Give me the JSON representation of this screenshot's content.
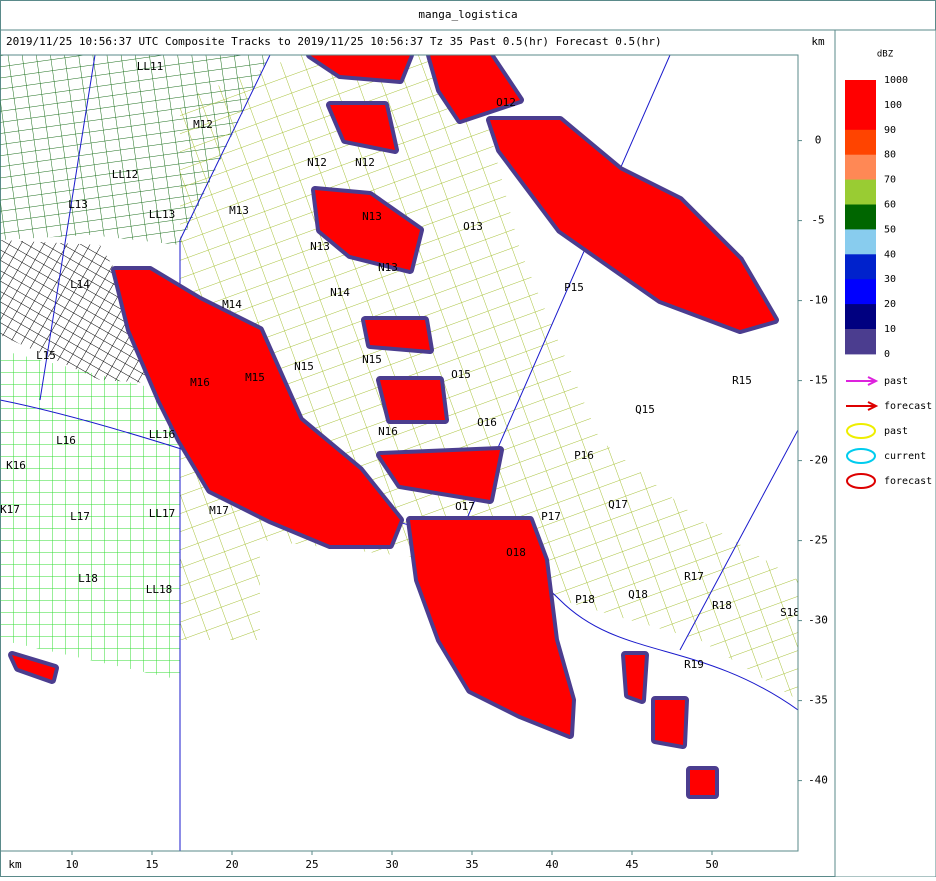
{
  "window_title": "manga_logistica",
  "header": "2019/11/25 10:56:37 UTC Composite Tracks to 2019/11/25 10:56:37 Tz 35 Past 0.5(hr) Forecast 0.5(hr)",
  "axes": {
    "x_unit": "km",
    "y_unit": "km",
    "xlim": [
      5.5,
      55.375
    ],
    "ylim": [
      -44.4,
      5.35
    ],
    "xticks": [
      10,
      15,
      20,
      25,
      30,
      35,
      40,
      45,
      50
    ],
    "yticks": [
      0,
      -5,
      -10,
      -15,
      -20,
      -25,
      -30,
      -35,
      -40
    ]
  },
  "legend": {
    "title": "dBZ",
    "scale_labels": [
      1000,
      100,
      90,
      80,
      70,
      60,
      50,
      40,
      30,
      20,
      10,
      0
    ],
    "scale_colors": [
      "#ff0000",
      "#ff0000",
      "#ff4400",
      "#ff8855",
      "#99cc33",
      "#006600",
      "#88ccee",
      "#0022cc",
      "#0000ff",
      "#000080",
      "#4b3d8f"
    ],
    "items": [
      {
        "symbol": "arrow",
        "color": "#dd22dd",
        "label": "past"
      },
      {
        "symbol": "arrow",
        "color": "#dd0000",
        "label": "forecast"
      },
      {
        "symbol": "ellipse",
        "color": "#eeee00",
        "label": "past"
      },
      {
        "symbol": "ellipse",
        "color": "#00ccee",
        "label": "current"
      },
      {
        "symbol": "ellipse",
        "color": "#dd0000",
        "label": "forecast"
      }
    ]
  },
  "map_labels": [
    "LL11",
    "M12",
    "N12",
    "N12",
    "O12",
    "LL12",
    "L13",
    "M13",
    "LL13",
    "N13",
    "N13",
    "O13",
    "N13",
    "N14",
    "M14",
    "L14",
    "P15",
    "N15",
    "N15",
    "O15",
    "R15",
    "Q15",
    "L15",
    "M15",
    "M16",
    "L16",
    "LL16",
    "N16",
    "O16",
    "P16",
    "K16",
    "O17",
    "P17",
    "Q17",
    "K17",
    "L17",
    "LL17",
    "M17",
    "O18",
    "P18",
    "Q18",
    "R17",
    "R18",
    "S18",
    "R19",
    "L18",
    "LL18"
  ]
}
